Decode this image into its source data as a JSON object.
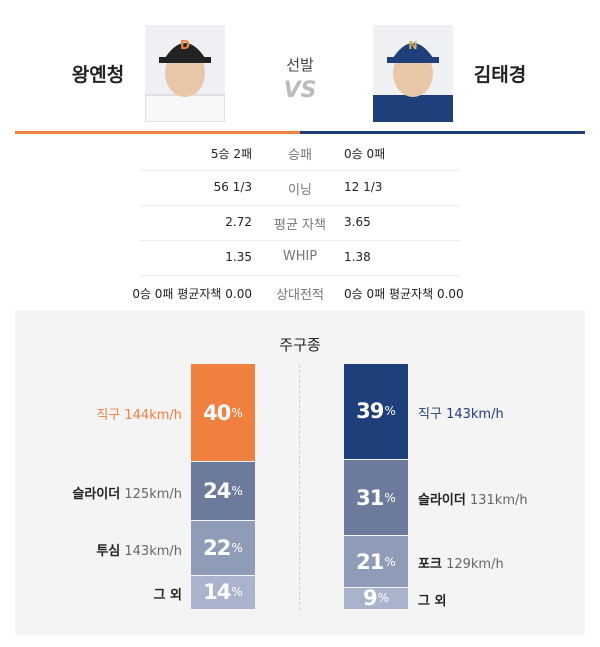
{
  "header": {
    "left": {
      "name": "왕옌청"
    },
    "center": {
      "label": "선발",
      "vs": "VS"
    },
    "right": {
      "name": "김태경"
    }
  },
  "stats": {
    "rows": [
      {
        "left": "5승 2패",
        "label": "승패",
        "right": "0승 0패"
      },
      {
        "left": "56 1/3",
        "label": "이닝",
        "right": "12 1/3"
      },
      {
        "left": "2.72",
        "label": "평균 자책",
        "right": "3.65"
      },
      {
        "left": "1.35",
        "label": "WHIP",
        "right": "1.38"
      },
      {
        "left": "0승 0패 평균자책 0.00",
        "label": "상대전적",
        "right": "0승 0패 평균자책 0.00"
      }
    ]
  },
  "pitches": {
    "title": "주구종",
    "unit": "%",
    "left": [
      {
        "name": "직구",
        "speed": "144km/h",
        "percent": 40
      },
      {
        "name": "슬라이더",
        "speed": "125km/h",
        "percent": 24
      },
      {
        "name": "투심",
        "speed": "143km/h",
        "percent": 22
      },
      {
        "name": "그 외",
        "percent": 14
      }
    ],
    "right": [
      {
        "name": "직구",
        "speed": "143km/h",
        "percent": 39
      },
      {
        "name": "슬라이더",
        "speed": "131km/h",
        "percent": 31
      },
      {
        "name": "포크",
        "speed": "129km/h",
        "percent": 21
      },
      {
        "name": "그 외",
        "percent": 9
      }
    ]
  }
}
